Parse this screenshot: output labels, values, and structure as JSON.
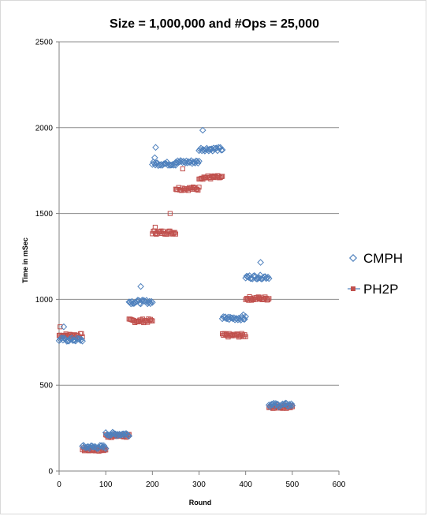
{
  "chart_data": {
    "type": "scatter",
    "title": "Size = 1,000,000 and #Ops = 25,000",
    "xlabel": "Round",
    "ylabel": "Time in mSec",
    "xlim": [
      0,
      600
    ],
    "ylim": [
      0,
      2500
    ],
    "xticks": [
      0,
      100,
      200,
      300,
      400,
      500,
      600
    ],
    "yticks": [
      0,
      500,
      1000,
      1500,
      2000,
      2500
    ],
    "grid": "horizontal",
    "legend_position": "right",
    "series": [
      {
        "name": "CMPH",
        "marker": "diamond",
        "color": "#4f81bd",
        "segments": [
          {
            "x_range": [
              0,
              50
            ],
            "y": 765
          },
          {
            "x_range": [
              50,
              100
            ],
            "y": 140
          },
          {
            "x_range": [
              100,
              150
            ],
            "y": 215
          },
          {
            "x_range": [
              150,
              200
            ],
            "y": 985
          },
          {
            "x_range": [
              200,
              250
            ],
            "y": 1790
          },
          {
            "x_range": [
              250,
              300
            ],
            "y": 1800
          },
          {
            "x_range": [
              300,
              350
            ],
            "y": 1875
          },
          {
            "x_range": [
              350,
              400
            ],
            "y": 890
          },
          {
            "x_range": [
              400,
              450
            ],
            "y": 1130
          },
          {
            "x_range": [
              450,
              500
            ],
            "y": 385
          }
        ],
        "outliers": [
          {
            "x": 10,
            "y": 840
          },
          {
            "x": 175,
            "y": 1075
          },
          {
            "x": 205,
            "y": 1825
          },
          {
            "x": 207,
            "y": 1885
          },
          {
            "x": 308,
            "y": 1985
          },
          {
            "x": 395,
            "y": 910
          },
          {
            "x": 432,
            "y": 1215
          }
        ]
      },
      {
        "name": "PH2P",
        "marker": "square",
        "color": "#c0504d",
        "segments": [
          {
            "x_range": [
              0,
              50
            ],
            "y": 790
          },
          {
            "x_range": [
              50,
              100
            ],
            "y": 125
          },
          {
            "x_range": [
              100,
              150
            ],
            "y": 205
          },
          {
            "x_range": [
              150,
              200
            ],
            "y": 875
          },
          {
            "x_range": [
              200,
              250
            ],
            "y": 1390
          },
          {
            "x_range": [
              250,
              300
            ],
            "y": 1645
          },
          {
            "x_range": [
              300,
              350
            ],
            "y": 1710
          },
          {
            "x_range": [
              350,
              400
            ],
            "y": 790
          },
          {
            "x_range": [
              400,
              450
            ],
            "y": 1005
          },
          {
            "x_range": [
              450,
              500
            ],
            "y": 375
          }
        ],
        "outliers": [
          {
            "x": 2,
            "y": 840
          },
          {
            "x": 206,
            "y": 1420
          },
          {
            "x": 238,
            "y": 1500
          },
          {
            "x": 265,
            "y": 1760
          }
        ]
      }
    ]
  }
}
